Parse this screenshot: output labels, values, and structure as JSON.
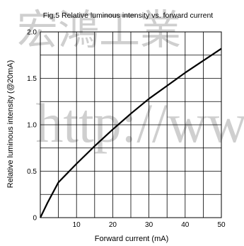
{
  "chart_data": {
    "type": "line",
    "title": "Fig.5 Relative luminous intensity vs. forward current",
    "xlabel": "Forward current (mA)",
    "ylabel": "Relative luminous intensity (@20mA)",
    "xlim": [
      0,
      50
    ],
    "ylim": [
      0,
      2.0
    ],
    "x_ticks": [
      10,
      20,
      30,
      40,
      50
    ],
    "x_tick_labels": [
      "10",
      "20",
      "30",
      "40",
      "50"
    ],
    "y_ticks": [
      0,
      0.5,
      1.0,
      1.5,
      2.0
    ],
    "y_tick_labels": [
      "0",
      "0.5",
      "1.0",
      "1.5",
      "2.0"
    ],
    "grid": true,
    "x_grid_step": 5,
    "y_grid_step": 0.25,
    "series": [
      {
        "color": "#000000",
        "x": [
          0,
          2,
          5,
          10,
          15,
          20,
          25,
          30,
          35,
          40,
          45,
          50
        ],
        "y": [
          0,
          0.16,
          0.38,
          0.58,
          0.77,
          0.95,
          1.12,
          1.28,
          1.42,
          1.56,
          1.69,
          1.82
        ]
      }
    ]
  },
  "watermark": {
    "top_text": "宏鴻工業",
    "mid_text": "http://www"
  }
}
